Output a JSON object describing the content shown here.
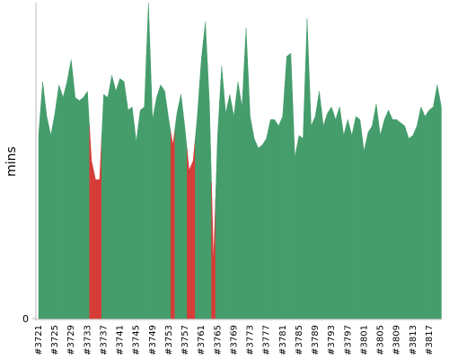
{
  "chart_data": {
    "type": "area",
    "y_label": "mins",
    "categories": [
      "#3721",
      null,
      null,
      null,
      "#3725",
      null,
      null,
      null,
      "#3729",
      null,
      null,
      null,
      "#3733",
      null,
      null,
      null,
      "#3737",
      null,
      null,
      null,
      "#3741",
      null,
      null,
      null,
      "#3745",
      null,
      null,
      null,
      "#3749",
      null,
      null,
      null,
      "#3753",
      null,
      null,
      null,
      "#3757",
      null,
      null,
      null,
      "#3761",
      null,
      null,
      null,
      "#3765",
      null,
      null,
      null,
      "#3769",
      null,
      null,
      null,
      "#3773",
      null,
      null,
      null,
      "#3777",
      null,
      null,
      null,
      "#3781",
      null,
      null,
      null,
      "#3785",
      null,
      null,
      null,
      "#3789",
      null,
      null,
      null,
      "#3793",
      null,
      null,
      null,
      "#3797",
      null,
      null,
      null,
      "#3801",
      null,
      null,
      null,
      "#3805",
      null,
      null,
      null,
      "#3809",
      null,
      null,
      null,
      "#3813",
      null,
      null,
      null,
      "#3817",
      null,
      null,
      null
    ],
    "values": [
      58,
      75,
      64,
      58,
      65,
      74,
      70,
      75,
      82,
      70,
      69,
      70,
      72,
      50,
      44,
      44,
      71,
      70,
      77,
      72,
      76,
      75,
      66,
      67,
      56,
      66,
      67,
      100,
      63,
      70,
      74,
      72,
      63,
      55,
      65,
      71,
      60,
      47,
      50,
      64,
      82,
      94,
      68,
      18,
      58,
      80,
      65,
      71,
      64,
      75,
      67,
      92,
      64,
      57,
      54,
      55,
      57,
      63,
      63,
      61,
      64,
      83,
      84,
      51,
      58,
      57,
      95,
      61,
      64,
      72,
      61,
      65,
      67,
      63,
      67,
      58,
      63,
      58,
      64,
      63,
      53,
      59,
      61,
      68,
      58,
      63,
      66,
      63,
      63,
      62,
      61,
      57,
      58,
      61,
      67,
      64,
      66,
      67,
      74,
      67
    ],
    "colors": [
      "#459d6c",
      "#459d6c",
      "#459d6c",
      "#459d6c",
      "#459d6c",
      "#459d6c",
      "#459d6c",
      "#459d6c",
      "#459d6c",
      "#459d6c",
      "#459d6c",
      "#459d6c",
      "#459d6c",
      "#d63d38",
      "#d63d38",
      "#d63d38",
      "#459d6c",
      "#459d6c",
      "#459d6c",
      "#459d6c",
      "#459d6c",
      "#459d6c",
      "#459d6c",
      "#459d6c",
      "#459d6c",
      "#459d6c",
      "#459d6c",
      "#459d6c",
      "#459d6c",
      "#459d6c",
      "#459d6c",
      "#459d6c",
      "#459d6c",
      "#d63d38",
      "#459d6c",
      "#459d6c",
      "#459d6c",
      "#d63d38",
      "#d63d38",
      "#459d6c",
      "#459d6c",
      "#459d6c",
      "#459d6c",
      "#d63d38",
      "#459d6c",
      "#459d6c",
      "#459d6c",
      "#459d6c",
      "#459d6c",
      "#459d6c",
      "#459d6c",
      "#459d6c",
      "#459d6c",
      "#459d6c",
      "#459d6c",
      "#459d6c",
      "#459d6c",
      "#459d6c",
      "#459d6c",
      "#459d6c",
      "#459d6c",
      "#459d6c",
      "#459d6c",
      "#459d6c",
      "#459d6c",
      "#459d6c",
      "#459d6c",
      "#459d6c",
      "#459d6c",
      "#459d6c",
      "#459d6c",
      "#459d6c",
      "#459d6c",
      "#459d6c",
      "#459d6c",
      "#459d6c",
      "#459d6c",
      "#459d6c",
      "#459d6c",
      "#459d6c",
      "#459d6c",
      "#459d6c",
      "#459d6c",
      "#459d6c",
      "#459d6c",
      "#459d6c",
      "#459d6c",
      "#459d6c",
      "#459d6c",
      "#459d6c",
      "#459d6c",
      "#459d6c",
      "#459d6c",
      "#459d6c",
      "#459d6c",
      "#459d6c",
      "#459d6c",
      "#459d6c",
      "#459d6c",
      "#459d6c"
    ],
    "ylim": [
      0,
      100
    ],
    "yticks": [
      0
    ]
  }
}
